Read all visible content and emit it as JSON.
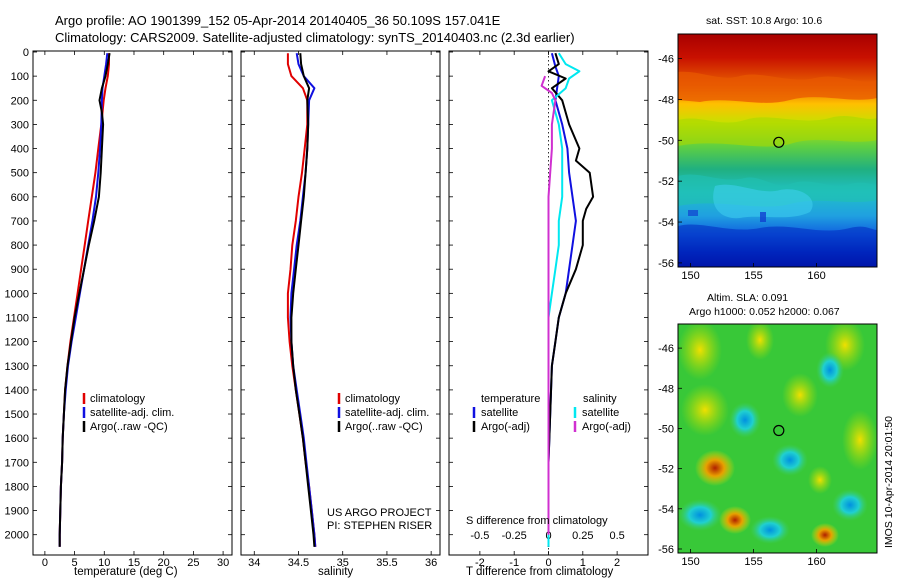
{
  "header": {
    "line1": "Argo profile: AO 1901399_152 05-Apr-2014 20140405_36 50.109S 157.041E",
    "line2": "Climatology: CARS2009. Satellite-adjusted climatology: synTS_20140403.nc (2.3d earlier)"
  },
  "colors": {
    "climatology": "#e00000",
    "satellite": "#1010e0",
    "argo": "#000000",
    "sat_salinity": "#00e8f0",
    "argo_salinity_diff": "#d030d0"
  },
  "project": {
    "line1": "US ARGO PROJECT",
    "line2": "PI: STEPHEN RISER"
  },
  "timestamp": "IMOS 10-Apr-2014 20:01:50",
  "chart_data": [
    {
      "type": "line",
      "id": "temperature",
      "xlabel": "temperature (deg C)",
      "xticks": [
        0,
        5,
        10,
        15,
        20,
        25,
        30
      ],
      "xlim": [
        -2,
        31.5
      ],
      "ylim": [
        0,
        2080
      ],
      "yticks": [
        0,
        100,
        200,
        300,
        400,
        500,
        600,
        700,
        800,
        900,
        1000,
        1100,
        1200,
        1300,
        1400,
        1500,
        1600,
        1700,
        1800,
        1900,
        2000
      ],
      "legend": [
        "climatology",
        "satellite-adj. clim.",
        "Argo(..raw -QC)"
      ],
      "series": [
        {
          "name": "climatology",
          "color": "#e00000",
          "points": [
            [
              10.8,
              5
            ],
            [
              10.8,
              50
            ],
            [
              10.6,
              100
            ],
            [
              10.2,
              150
            ],
            [
              9.9,
              200
            ],
            [
              9.5,
              300
            ],
            [
              9.0,
              400
            ],
            [
              8.5,
              500
            ],
            [
              7.9,
              600
            ],
            [
              7.3,
              700
            ],
            [
              6.7,
              800
            ],
            [
              6.1,
              900
            ],
            [
              5.5,
              1000
            ],
            [
              4.9,
              1100
            ],
            [
              4.3,
              1200
            ],
            [
              3.8,
              1300
            ],
            [
              3.4,
              1400
            ],
            [
              3.2,
              1500
            ],
            [
              3.0,
              1600
            ],
            [
              2.9,
              1700
            ],
            [
              2.7,
              1800
            ],
            [
              2.6,
              1900
            ],
            [
              2.5,
              2000
            ],
            [
              2.5,
              2050
            ]
          ]
        },
        {
          "name": "satellite-adj. clim.",
          "color": "#1010e0",
          "points": [
            [
              10.5,
              5
            ],
            [
              10.3,
              50
            ],
            [
              10.0,
              100
            ],
            [
              9.7,
              150
            ],
            [
              9.6,
              200
            ],
            [
              9.5,
              300
            ],
            [
              9.3,
              400
            ],
            [
              9.0,
              500
            ],
            [
              8.6,
              600
            ],
            [
              8.0,
              700
            ],
            [
              7.3,
              800
            ],
            [
              6.6,
              900
            ],
            [
              5.9,
              1000
            ],
            [
              5.2,
              1100
            ],
            [
              4.5,
              1200
            ],
            [
              3.9,
              1300
            ],
            [
              3.5,
              1400
            ],
            [
              3.2,
              1500
            ],
            [
              3.0,
              1600
            ],
            [
              2.9,
              1700
            ],
            [
              2.7,
              1800
            ],
            [
              2.6,
              1900
            ],
            [
              2.5,
              2000
            ],
            [
              2.5,
              2050
            ]
          ]
        },
        {
          "name": "Argo(..raw -QC)",
          "color": "#000000",
          "points": [
            [
              10.9,
              5
            ],
            [
              10.6,
              50
            ],
            [
              10.2,
              100
            ],
            [
              9.6,
              150
            ],
            [
              9.2,
              200
            ],
            [
              9.6,
              250
            ],
            [
              9.8,
              300
            ],
            [
              9.6,
              400
            ],
            [
              9.4,
              500
            ],
            [
              9.1,
              600
            ],
            [
              8.3,
              700
            ],
            [
              7.4,
              800
            ],
            [
              6.6,
              900
            ],
            [
              5.8,
              1000
            ],
            [
              5.0,
              1100
            ],
            [
              4.4,
              1200
            ],
            [
              3.8,
              1300
            ],
            [
              3.4,
              1400
            ],
            [
              3.2,
              1500
            ],
            [
              3.0,
              1600
            ],
            [
              2.9,
              1700
            ],
            [
              2.7,
              1800
            ],
            [
              2.6,
              1900
            ],
            [
              2.5,
              2000
            ],
            [
              2.5,
              2050
            ]
          ]
        }
      ]
    },
    {
      "type": "line",
      "id": "salinity",
      "xlabel": "salinity",
      "xticks": [
        34,
        34.5,
        35,
        35.5,
        36
      ],
      "xlim": [
        33.85,
        36.1
      ],
      "ylim": [
        0,
        2080
      ],
      "legend": [
        "climatology",
        "satellite-adj. clim.",
        "Argo(..raw -QC)"
      ],
      "series": [
        {
          "name": "climatology",
          "color": "#e00000",
          "points": [
            [
              34.38,
              5
            ],
            [
              34.38,
              50
            ],
            [
              34.42,
              100
            ],
            [
              34.55,
              150
            ],
            [
              34.6,
              200
            ],
            [
              34.6,
              300
            ],
            [
              34.57,
              400
            ],
            [
              34.54,
              500
            ],
            [
              34.5,
              600
            ],
            [
              34.47,
              700
            ],
            [
              34.43,
              800
            ],
            [
              34.41,
              900
            ],
            [
              34.38,
              1000
            ],
            [
              34.38,
              1100
            ],
            [
              34.4,
              1200
            ],
            [
              34.43,
              1300
            ],
            [
              34.47,
              1400
            ],
            [
              34.51,
              1500
            ],
            [
              34.55,
              1600
            ],
            [
              34.58,
              1700
            ],
            [
              34.62,
              1800
            ],
            [
              34.65,
              1900
            ],
            [
              34.68,
              2000
            ],
            [
              34.69,
              2050
            ]
          ]
        },
        {
          "name": "satellite-adj. clim.",
          "color": "#1010e0",
          "points": [
            [
              34.48,
              5
            ],
            [
              34.5,
              50
            ],
            [
              34.56,
              100
            ],
            [
              34.68,
              150
            ],
            [
              34.62,
              200
            ],
            [
              34.61,
              300
            ],
            [
              34.6,
              400
            ],
            [
              34.58,
              500
            ],
            [
              34.55,
              600
            ],
            [
              34.52,
              700
            ],
            [
              34.48,
              800
            ],
            [
              34.45,
              900
            ],
            [
              34.42,
              1000
            ],
            [
              34.41,
              1100
            ],
            [
              34.42,
              1200
            ],
            [
              34.44,
              1300
            ],
            [
              34.48,
              1400
            ],
            [
              34.52,
              1500
            ],
            [
              34.56,
              1600
            ],
            [
              34.59,
              1700
            ],
            [
              34.62,
              1800
            ],
            [
              34.65,
              1900
            ],
            [
              34.68,
              2000
            ],
            [
              34.69,
              2050
            ]
          ]
        },
        {
          "name": "Argo(..raw -QC)",
          "color": "#000000",
          "points": [
            [
              34.52,
              5
            ],
            [
              34.53,
              50
            ],
            [
              34.56,
              100
            ],
            [
              34.62,
              150
            ],
            [
              34.6,
              200
            ],
            [
              34.61,
              300
            ],
            [
              34.6,
              400
            ],
            [
              34.58,
              500
            ],
            [
              34.56,
              600
            ],
            [
              34.53,
              700
            ],
            [
              34.5,
              800
            ],
            [
              34.47,
              900
            ],
            [
              34.44,
              1000
            ],
            [
              34.42,
              1100
            ],
            [
              34.42,
              1200
            ],
            [
              34.44,
              1300
            ],
            [
              34.47,
              1400
            ],
            [
              34.51,
              1500
            ],
            [
              34.55,
              1600
            ],
            [
              34.58,
              1700
            ],
            [
              34.61,
              1800
            ],
            [
              34.64,
              1900
            ],
            [
              34.67,
              2000
            ],
            [
              34.68,
              2050
            ]
          ]
        }
      ]
    },
    {
      "type": "line",
      "id": "difference",
      "xlabel": "T difference from climatology",
      "xlabel_top": "S difference from climatology",
      "xticks": [
        -2,
        -1,
        0,
        1,
        2
      ],
      "xticklabels": [
        "-2",
        "-1",
        "0",
        "1",
        "2"
      ],
      "s_ticks": [
        "-0.5",
        "-0.25",
        "0",
        "0.25",
        "0.5"
      ],
      "xlim": [
        -2.9,
        2.9
      ],
      "ylim": [
        0,
        2080
      ],
      "legend": {
        "temperature": "temperature",
        "salinity": "salinity",
        "t_sat": "satellite",
        "t_argo": "Argo(-adj)",
        "s_sat": "satellite",
        "s_argo": "Argo(-adj)"
      },
      "series": [
        {
          "name": "temperature satellite",
          "color": "#1010e0",
          "points": [
            [
              0.1,
              5
            ],
            [
              0.2,
              60
            ],
            [
              0.3,
              100
            ],
            [
              0.2,
              200
            ],
            [
              0.4,
              300
            ],
            [
              0.55,
              400
            ],
            [
              0.6,
              500
            ],
            [
              0.7,
              600
            ],
            [
              0.8,
              700
            ],
            [
              0.7,
              800
            ],
            [
              0.6,
              900
            ],
            [
              0.5,
              1000
            ],
            [
              0.3,
              1100
            ],
            [
              0.2,
              1200
            ],
            [
              0.1,
              1300
            ],
            [
              0.05,
              1500
            ],
            [
              0.0,
              1700
            ],
            [
              0.0,
              1900
            ],
            [
              0.0,
              2050
            ]
          ]
        },
        {
          "name": "temperature Argo(-adj)",
          "color": "#000000",
          "points": [
            [
              0.2,
              5
            ],
            [
              0.3,
              50
            ],
            [
              0.0,
              80
            ],
            [
              0.5,
              110
            ],
            [
              0.1,
              150
            ],
            [
              0.4,
              200
            ],
            [
              0.6,
              300
            ],
            [
              0.9,
              400
            ],
            [
              0.8,
              450
            ],
            [
              1.2,
              500
            ],
            [
              1.3,
              600
            ],
            [
              1.1,
              650
            ],
            [
              1.0,
              700
            ],
            [
              1.0,
              750
            ],
            [
              1.0,
              800
            ],
            [
              0.8,
              900
            ],
            [
              0.5,
              1000
            ],
            [
              0.3,
              1100
            ],
            [
              0.2,
              1200
            ],
            [
              0.1,
              1300
            ],
            [
              0.05,
              1500
            ],
            [
              0.0,
              1700
            ],
            [
              0.0,
              1900
            ],
            [
              0.0,
              2050
            ]
          ]
        },
        {
          "name": "salinity satellite",
          "color": "#00e8f0",
          "points": [
            [
              0.3,
              5
            ],
            [
              0.5,
              50
            ],
            [
              0.9,
              80
            ],
            [
              0.6,
              110
            ],
            [
              0.5,
              150
            ],
            [
              0.1,
              200
            ],
            [
              0.3,
              300
            ],
            [
              0.4,
              400
            ],
            [
              0.4,
              500
            ],
            [
              0.4,
              600
            ],
            [
              0.3,
              700
            ],
            [
              0.3,
              800
            ],
            [
              0.2,
              900
            ],
            [
              0.1,
              1000
            ],
            [
              0.0,
              1100
            ],
            [
              0.0,
              1300
            ],
            [
              0.0,
              1500
            ],
            [
              0.0,
              1700
            ],
            [
              0.0,
              1900
            ],
            [
              0.0,
              2050
            ]
          ]
        },
        {
          "name": "salinity Argo(-adj)",
          "color": "#d030d0",
          "points": [
            [
              -0.1,
              100
            ],
            [
              -0.2,
              140
            ],
            [
              0.1,
              170
            ],
            [
              0.2,
              200
            ],
            [
              0.1,
              300
            ],
            [
              0.1,
              400
            ],
            [
              0.0,
              600
            ],
            [
              0.0,
              800
            ],
            [
              0.0,
              1000
            ],
            [
              0.0,
              1200
            ],
            [
              0.0,
              1400
            ],
            [
              0.0,
              1600
            ],
            [
              0.0,
              1800
            ],
            [
              0.0,
              2000
            ]
          ]
        }
      ]
    },
    {
      "type": "heatmap",
      "id": "sst-map",
      "title": "sat. SST: 10.8  Argo: 10.6",
      "xticks": [
        150,
        155,
        160
      ],
      "yticks": [
        -46,
        -48,
        -50,
        -52,
        -54,
        -56
      ],
      "xlim": [
        149,
        164.8
      ],
      "ylim": [
        -56.2,
        -44.8
      ],
      "marker": {
        "lon": 157.0,
        "lat": -50.1
      }
    },
    {
      "type": "heatmap",
      "id": "sla-map",
      "title_line1": "Altim. SLA: 0.091",
      "title_line2": "Argo h1000: 0.052 h2000: 0.067",
      "xticks": [
        150,
        155,
        160
      ],
      "yticks": [
        -46,
        -48,
        -50,
        -52,
        -54,
        -56
      ],
      "xlim": [
        149,
        164.8
      ],
      "ylim": [
        -56.2,
        -44.8
      ],
      "marker": {
        "lon": 157.0,
        "lat": -50.1
      }
    }
  ]
}
